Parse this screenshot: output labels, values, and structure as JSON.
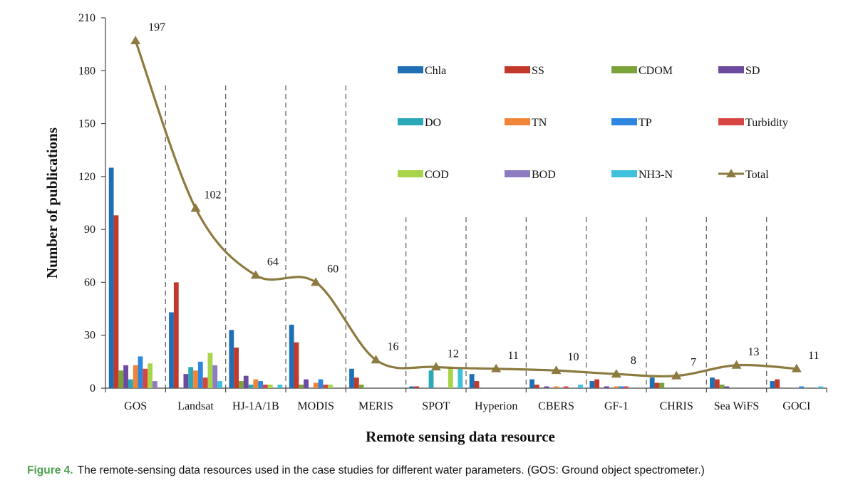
{
  "caption": {
    "label": "Figure 4.",
    "text": "The remote-sensing data resources used in the case studies for different water parameters. (GOS: Ground object spectrometer.)"
  },
  "chart_data": {
    "type": "bar",
    "xlabel": "Remote sensing data resource",
    "ylabel": "Number of publications",
    "ylim": [
      0,
      210
    ],
    "yticks": [
      0,
      30,
      60,
      90,
      120,
      150,
      180,
      210
    ],
    "grid": false,
    "legend_position": "top-right",
    "categories": [
      "GOS",
      "Landsat",
      "HJ-1A/1B",
      "MODIS",
      "MERIS",
      "SPOT",
      "Hyperion",
      "CBERS",
      "GF-1",
      "CHRIS",
      "Sea WiFS",
      "GOCI"
    ],
    "series": [
      {
        "name": "Chla",
        "color": "#1f6fb4",
        "values": [
          125,
          43,
          33,
          36,
          11,
          1,
          8,
          5,
          4,
          6,
          6,
          4
        ]
      },
      {
        "name": "SS",
        "color": "#c0392b",
        "values": [
          98,
          60,
          23,
          26,
          6,
          1,
          4,
          2,
          5,
          3,
          5,
          5
        ]
      },
      {
        "name": "CDOM",
        "color": "#7aa33a",
        "values": [
          10,
          0,
          4,
          2,
          2,
          0,
          0,
          0,
          0,
          3,
          2,
          0
        ]
      },
      {
        "name": "SD",
        "color": "#6c4a9e",
        "values": [
          13,
          8,
          7,
          5,
          0,
          0,
          0,
          1,
          1,
          0,
          1,
          0
        ]
      },
      {
        "name": "DO",
        "color": "#2aa7b8",
        "values": [
          5,
          12,
          2,
          0,
          0,
          10,
          0,
          0,
          0,
          0,
          0,
          0
        ]
      },
      {
        "name": "TN",
        "color": "#f0853a",
        "values": [
          13,
          10,
          5,
          3,
          0,
          0,
          0,
          1,
          1,
          0,
          0,
          0
        ]
      },
      {
        "name": "TP",
        "color": "#2e86de",
        "values": [
          18,
          15,
          4,
          5,
          0,
          0,
          0,
          0,
          1,
          0,
          0,
          1
        ]
      },
      {
        "name": "Turbidity",
        "color": "#d64541",
        "values": [
          11,
          6,
          2,
          2,
          0,
          0,
          0,
          1,
          1,
          0,
          0,
          0
        ]
      },
      {
        "name": "COD",
        "color": "#a8d44a",
        "values": [
          14,
          20,
          2,
          2,
          0,
          12,
          0,
          0,
          0,
          0,
          0,
          0
        ]
      },
      {
        "name": "BOD",
        "color": "#8e7cc3",
        "values": [
          4,
          13,
          0,
          0,
          0,
          0,
          0,
          0,
          0,
          0,
          0,
          0
        ]
      },
      {
        "name": "NH3-N",
        "color": "#3fc1dd",
        "values": [
          0,
          4,
          2,
          0,
          0,
          11,
          0,
          2,
          0,
          0,
          0,
          1
        ]
      }
    ],
    "total": {
      "name": "Total",
      "color": "#8c7a3f",
      "values": [
        197,
        102,
        64,
        60,
        16,
        12,
        11,
        10,
        8,
        7,
        13,
        11
      ]
    }
  }
}
